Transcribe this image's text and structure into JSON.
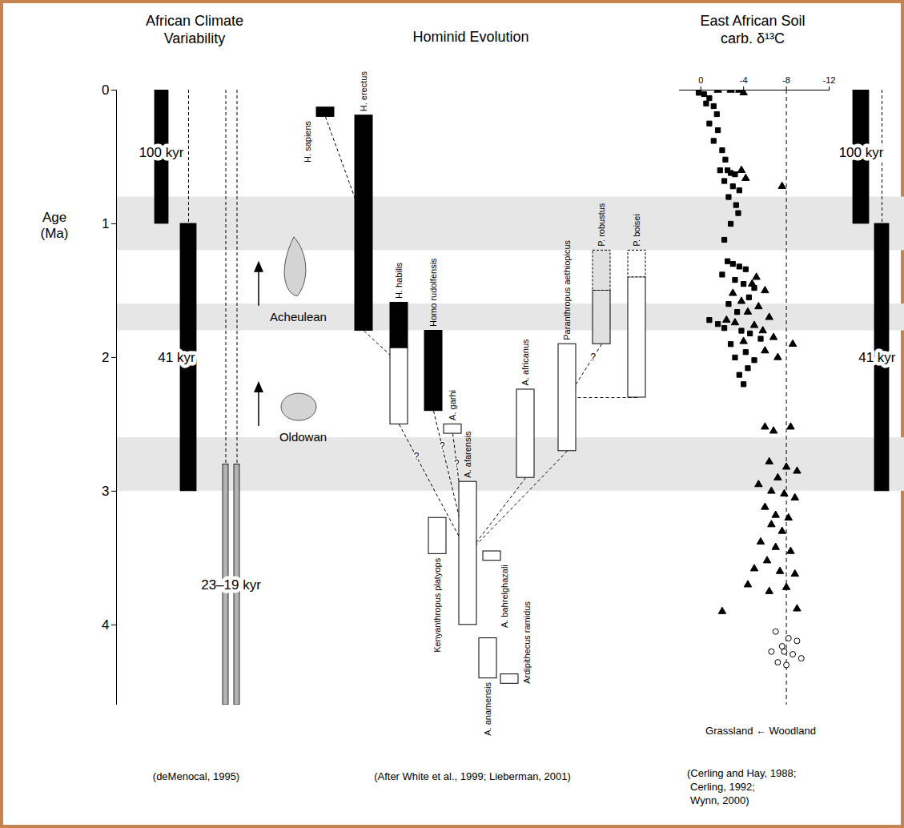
{
  "chart_data": [
    {
      "type": "timeline",
      "title": "African Climate Variability",
      "ylabel": "Age (Ma)",
      "ylim": [
        0,
        4.6
      ],
      "yticks": [
        0,
        1,
        2,
        3,
        4
      ],
      "bands": [
        {
          "start": 0.8,
          "end": 1.2,
          "color": "#e6e6e6"
        },
        {
          "start": 1.6,
          "end": 1.8,
          "color": "#e6e6e6"
        },
        {
          "start": 2.6,
          "end": 3.0,
          "color": "#e6e6e6"
        }
      ],
      "cycles": [
        {
          "label": "100 kyr",
          "color": "#000000",
          "bars": [
            [
              0,
              1.0
            ]
          ],
          "dashed": [],
          "label_age": 0.47
        },
        {
          "label": "41 kyr",
          "color": "#000000",
          "bars": [
            [
              1.0,
              3.0
            ]
          ],
          "dashed": [
            [
              0,
              1.0
            ]
          ],
          "label_age": 2.0
        },
        {
          "label": "23–19 kyr",
          "color": "#b3b3b3",
          "bars": [
            [
              2.8,
              4.6
            ],
            [
              2.8,
              4.6
            ]
          ],
          "dashed": [
            [
              0,
              2.8
            ],
            [
              0,
              2.8
            ]
          ],
          "label_age": 3.7
        }
      ],
      "tools": [
        {
          "label": "Acheulean",
          "age": 1.7
        },
        {
          "label": "Oldowan",
          "age": 2.6
        }
      ],
      "caption": "(deMenocal, 1995)"
    },
    {
      "type": "range",
      "title": "Hominid Evolution",
      "ylim": [
        0,
        4.6
      ],
      "taxa": [
        {
          "name": "H. sapiens",
          "segments": [
            {
              "start": 0.13,
              "end": 0.2,
              "color": "#000000",
              "line_style": "solid"
            }
          ]
        },
        {
          "name": "H. erectus",
          "segments": [
            {
              "start": 0.19,
              "end": 1.8,
              "color": "#000000",
              "line_style": "solid"
            }
          ]
        },
        {
          "name": "H. habilis",
          "segments": [
            {
              "start": 1.59,
              "end": 1.93,
              "color": "#000000",
              "line_style": "solid"
            },
            {
              "start": 1.93,
              "end": 2.5,
              "color": "#ffffff",
              "line_style": "solid"
            }
          ]
        },
        {
          "name": "Homo rudolfensis",
          "segments": [
            {
              "start": 1.8,
              "end": 2.4,
              "color": "#000000",
              "line_style": "solid"
            }
          ]
        },
        {
          "name": "A. garhi",
          "segments": [
            {
              "start": 2.5,
              "end": 2.57,
              "color": "#ffffff",
              "line_style": "solid"
            }
          ]
        },
        {
          "name": "Kenyanthropus platyops",
          "segments": [
            {
              "start": 3.2,
              "end": 3.47,
              "color": "#ffffff",
              "line_style": "solid"
            }
          ]
        },
        {
          "name": "A. afarensis",
          "segments": [
            {
              "start": 2.93,
              "end": 4.0,
              "color": "#ffffff",
              "line_style": "solid"
            }
          ]
        },
        {
          "name": "A. bahrelghazali",
          "segments": [
            {
              "start": 3.45,
              "end": 3.52,
              "color": "#ffffff",
              "line_style": "solid"
            }
          ]
        },
        {
          "name": "A. anamensis",
          "segments": [
            {
              "start": 4.1,
              "end": 4.4,
              "color": "#ffffff",
              "line_style": "solid"
            }
          ]
        },
        {
          "name": "Ardipithecus ramidus",
          "segments": [
            {
              "start": 4.37,
              "end": 4.44,
              "color": "#ffffff",
              "line_style": "solid"
            }
          ]
        },
        {
          "name": "A. africanus",
          "segments": [
            {
              "start": 2.24,
              "end": 2.9,
              "color": "#ffffff",
              "line_style": "solid"
            }
          ]
        },
        {
          "name": "Paranthropus aethiopicus",
          "segments": [
            {
              "start": 1.9,
              "end": 2.7,
              "color": "#ffffff",
              "line_style": "solid"
            }
          ]
        },
        {
          "name": "P. robustus",
          "segments": [
            {
              "start": 1.2,
              "end": 1.5,
              "color": "#e0e0e0",
              "line_style": "dashed"
            },
            {
              "start": 1.5,
              "end": 1.9,
              "color": "#e0e0e0",
              "line_style": "solid"
            }
          ]
        },
        {
          "name": "P. boisei",
          "segments": [
            {
              "start": 1.2,
              "end": 1.4,
              "color": "#ffffff",
              "line_style": "dashed"
            },
            {
              "start": 1.4,
              "end": 2.3,
              "color": "#ffffff",
              "line_style": "solid"
            }
          ]
        }
      ],
      "links": [
        {
          "from": "H. sapiens",
          "to": "H. erectus"
        },
        {
          "from": "H. erectus",
          "to": "H. habilis"
        },
        {
          "from": "H. habilis",
          "to": "A. afarensis",
          "label": "?"
        },
        {
          "from": "Homo rudolfensis",
          "to": "A. afarensis",
          "label": "?"
        },
        {
          "from": "A. garhi",
          "to": "A. afarensis",
          "label": "?"
        },
        {
          "from": "A. africanus",
          "to": "A. afarensis"
        },
        {
          "from": "Paranthropus aethiopicus",
          "to": "A. afarensis"
        },
        {
          "from": "P. robustus",
          "to": "Paranthropus aethiopicus",
          "label": "?"
        },
        {
          "from": "P. boisei",
          "to": "Paranthropus aethiopicus"
        }
      ],
      "caption": "(After White et al., 1999; Lieberman, 2001)"
    },
    {
      "type": "scatter",
      "title": "East African Soil carb. δ¹³C",
      "xlabel": "Grassland ← Woodland",
      "xlim": [
        2,
        -12
      ],
      "xticks": [
        0,
        -4,
        -8,
        -12
      ],
      "ylim": [
        0,
        4.6
      ],
      "reference_line": -8,
      "series": [
        {
          "marker": "square",
          "color": "#000000",
          "points": [
            [
              0.2,
              0.02
            ],
            [
              -0.3,
              0.03
            ],
            [
              -0.8,
              0.06
            ],
            [
              -0.5,
              0.1
            ],
            [
              -1.2,
              0.12
            ],
            [
              -1.5,
              0.18
            ],
            [
              -0.8,
              0.25
            ],
            [
              -1.6,
              0.3
            ],
            [
              -1.2,
              0.38
            ],
            [
              -2.0,
              0.45
            ],
            [
              -2.3,
              0.52
            ],
            [
              -1.8,
              0.6
            ],
            [
              -2.5,
              0.6
            ],
            [
              -2.8,
              0.62
            ],
            [
              -3.2,
              0.63
            ],
            [
              -2.2,
              0.68
            ],
            [
              -3.0,
              0.72
            ],
            [
              -3.6,
              0.75
            ],
            [
              -2.6,
              0.8
            ],
            [
              -3.3,
              0.86
            ],
            [
              -3.5,
              0.92
            ],
            [
              -2.8,
              1.0
            ],
            [
              -2.2,
              1.12
            ],
            [
              -2.5,
              1.28
            ],
            [
              -3.0,
              1.3
            ],
            [
              -3.6,
              1.32
            ],
            [
              -4.2,
              1.34
            ],
            [
              -2.0,
              1.38
            ],
            [
              -3.2,
              1.42
            ],
            [
              -4.0,
              1.45
            ],
            [
              -5.0,
              1.48
            ],
            [
              -4.5,
              1.55
            ],
            [
              -2.6,
              1.6
            ],
            [
              -3.4,
              1.66
            ],
            [
              -0.8,
              1.72
            ],
            [
              -1.6,
              1.75
            ],
            [
              -2.2,
              1.78
            ],
            [
              -3.8,
              1.8
            ],
            [
              -4.6,
              1.82
            ],
            [
              -5.6,
              1.86
            ],
            [
              -2.8,
              1.9
            ],
            [
              -4.2,
              1.96
            ],
            [
              -3.2,
              2.0
            ],
            [
              -5.0,
              2.02
            ],
            [
              -4.4,
              2.08
            ],
            [
              -3.6,
              2.13
            ],
            [
              -4.0,
              2.2
            ]
          ]
        },
        {
          "marker": "triangle",
          "color": "#000000",
          "points": [
            [
              -1.6,
              0.0
            ],
            [
              -2.8,
              0.0
            ],
            [
              -3.6,
              0.0
            ],
            [
              -4.0,
              0.02
            ],
            [
              -3.8,
              0.6
            ],
            [
              -4.2,
              0.66
            ],
            [
              -7.6,
              0.72
            ],
            [
              -5.2,
              1.4
            ],
            [
              -4.8,
              1.45
            ],
            [
              -6.0,
              1.5
            ],
            [
              -3.0,
              1.52
            ],
            [
              -3.8,
              1.58
            ],
            [
              -5.4,
              1.62
            ],
            [
              -4.4,
              1.66
            ],
            [
              -6.4,
              1.7
            ],
            [
              -2.4,
              1.72
            ],
            [
              -3.2,
              1.74
            ],
            [
              -5.0,
              1.76
            ],
            [
              -5.8,
              1.8
            ],
            [
              -6.8,
              1.85
            ],
            [
              -4.0,
              1.88
            ],
            [
              -8.6,
              1.9
            ],
            [
              -6.0,
              1.95
            ],
            [
              -7.2,
              2.0
            ],
            [
              -6.0,
              2.52
            ],
            [
              -6.8,
              2.55
            ],
            [
              -8.4,
              2.52
            ],
            [
              -6.4,
              2.78
            ],
            [
              -8.0,
              2.82
            ],
            [
              -9.0,
              2.85
            ],
            [
              -7.2,
              2.9
            ],
            [
              -5.4,
              2.95
            ],
            [
              -6.6,
              3.0
            ],
            [
              -7.8,
              3.02
            ],
            [
              -8.8,
              3.05
            ],
            [
              -6.0,
              3.12
            ],
            [
              -7.0,
              3.18
            ],
            [
              -8.2,
              3.2
            ],
            [
              -6.6,
              3.25
            ],
            [
              -7.6,
              3.3
            ],
            [
              -5.6,
              3.38
            ],
            [
              -7.0,
              3.42
            ],
            [
              -8.4,
              3.45
            ],
            [
              -6.2,
              3.52
            ],
            [
              -5.0,
              3.58
            ],
            [
              -7.4,
              3.6
            ],
            [
              -8.8,
              3.62
            ],
            [
              -4.4,
              3.7
            ],
            [
              -6.4,
              3.75
            ],
            [
              -8.0,
              3.72
            ],
            [
              -2.0,
              3.9
            ],
            [
              -9.0,
              3.88
            ]
          ]
        },
        {
          "marker": "circle_open",
          "color": "#000000",
          "points": [
            [
              -7.0,
              4.05
            ],
            [
              -8.2,
              4.1
            ],
            [
              -9.0,
              4.12
            ],
            [
              -7.6,
              4.16
            ],
            [
              -6.6,
              4.2
            ],
            [
              -7.8,
              4.2
            ],
            [
              -8.6,
              4.22
            ],
            [
              -9.4,
              4.25
            ],
            [
              -7.2,
              4.28
            ],
            [
              -8.0,
              4.3
            ]
          ]
        }
      ],
      "caption": [
        "(Cerling and Hay, 1988;",
        "Cerling, 1992;",
        "Wynn, 2000)"
      ]
    }
  ]
}
